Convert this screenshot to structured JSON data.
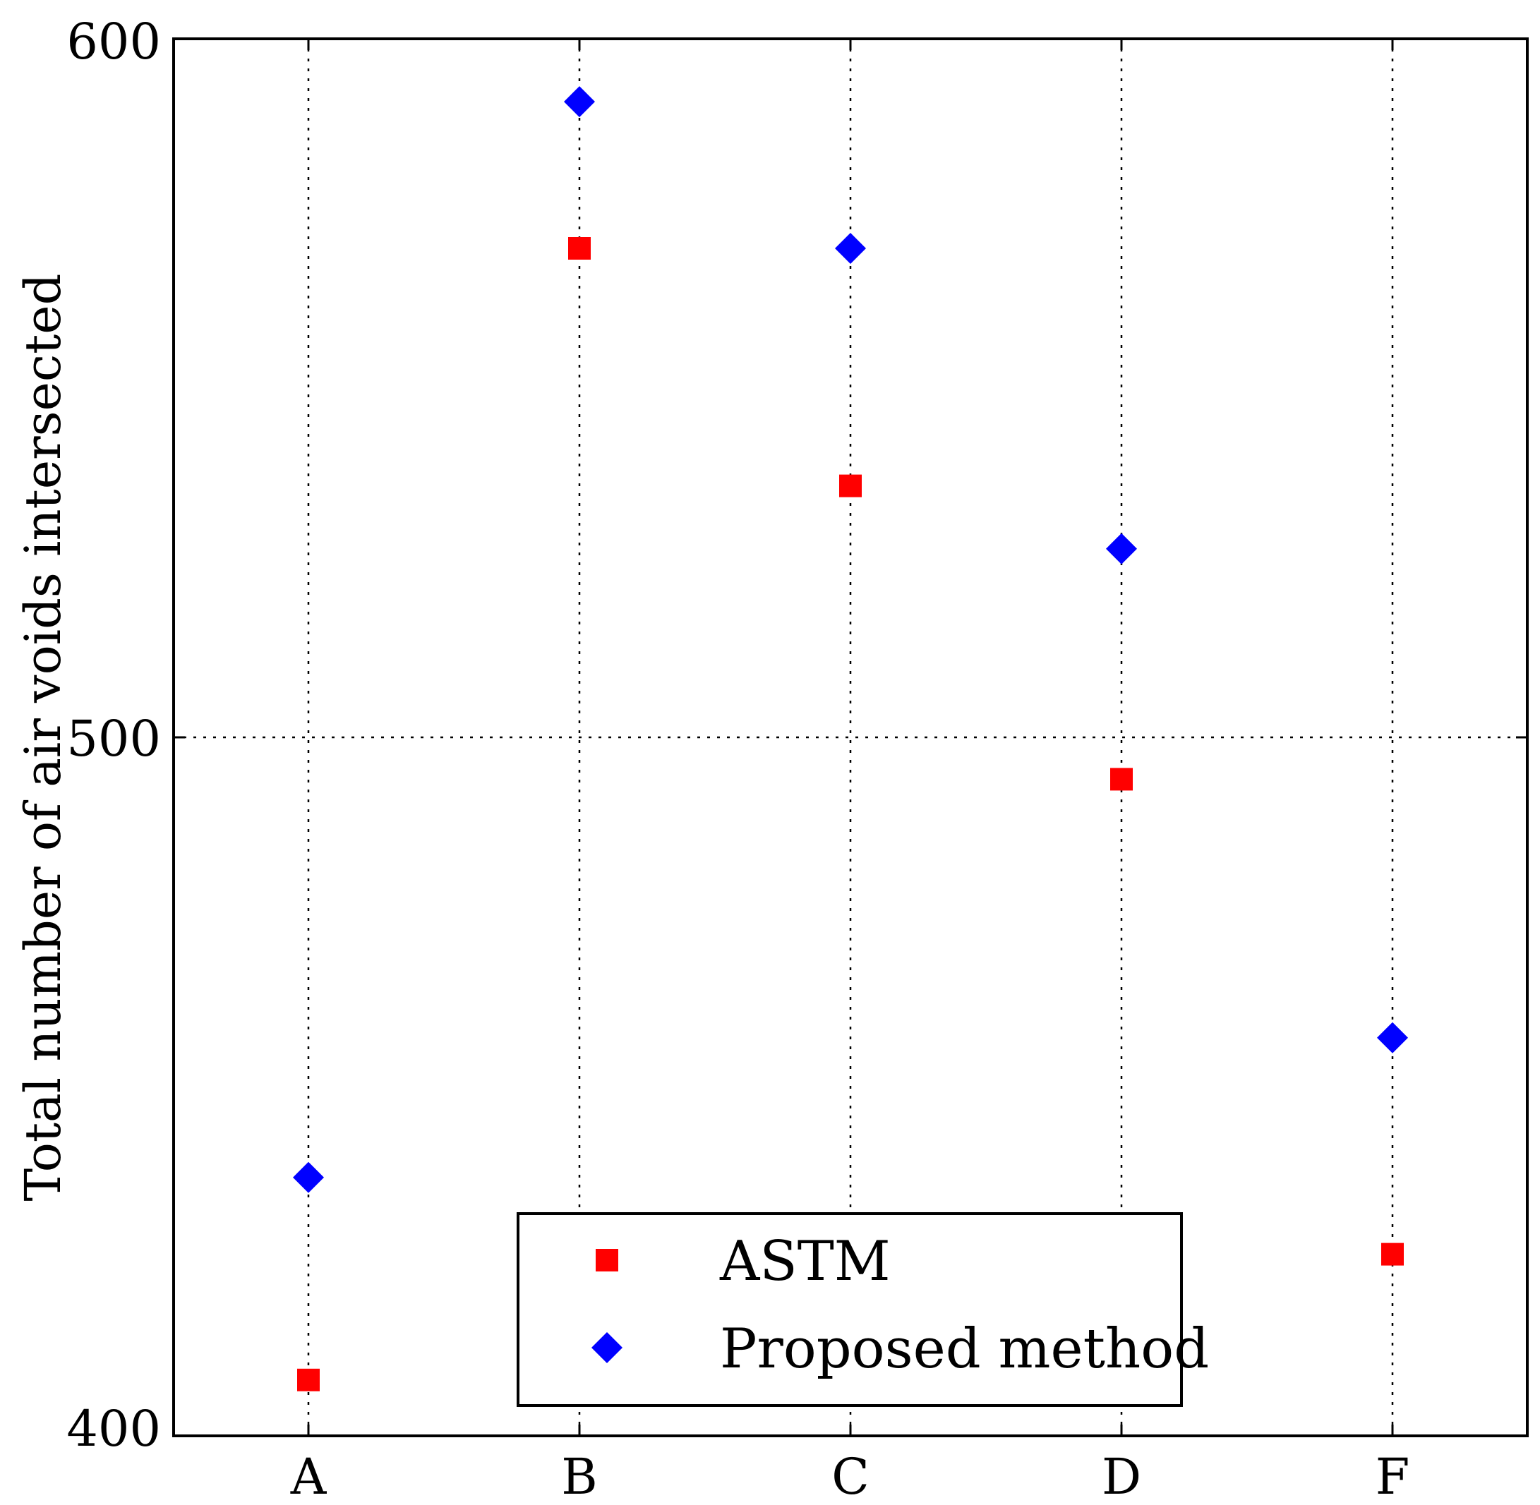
{
  "chart_data": {
    "type": "scatter",
    "categories": [
      "A",
      "B",
      "C",
      "D",
      "F"
    ],
    "series": [
      {
        "name": "ASTM",
        "marker": "square",
        "color": "#ff0000",
        "values": [
          408,
          570,
          536,
          494,
          426
        ]
      },
      {
        "name": "Proposed method",
        "marker": "diamond",
        "color": "#0000ff",
        "values": [
          437,
          591,
          570,
          527,
          457
        ]
      }
    ],
    "title": "",
    "xlabel": "",
    "ylabel": "Total number of air voids intersected",
    "ylim": [
      400,
      600
    ],
    "yticks": [
      400,
      500,
      600
    ],
    "grid": true,
    "legend_position": "lower-center"
  }
}
